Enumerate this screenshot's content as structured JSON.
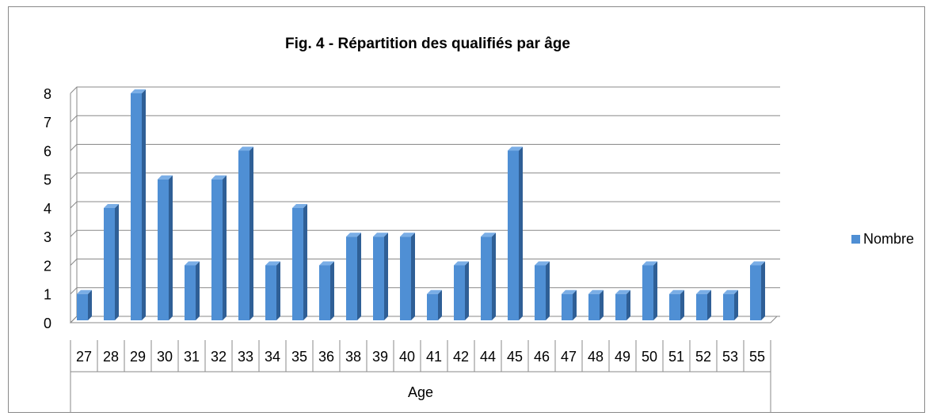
{
  "chart_data": {
    "type": "bar",
    "title": "Fig. 4 - Répartition des qualifiés par âge",
    "x_label": "Age",
    "categories": [
      "27",
      "28",
      "29",
      "30",
      "31",
      "32",
      "33",
      "34",
      "35",
      "36",
      "38",
      "39",
      "40",
      "41",
      "42",
      "44",
      "45",
      "46",
      "47",
      "48",
      "49",
      "50",
      "51",
      "52",
      "53",
      "55"
    ],
    "series": [
      {
        "name": "Nombre",
        "color": "#4f8fd4",
        "values": [
          1,
          4,
          8,
          5,
          2,
          5,
          6,
          2,
          4,
          2,
          3,
          3,
          3,
          1,
          2,
          3,
          6,
          2,
          1,
          1,
          1,
          2,
          1,
          1,
          1,
          2
        ]
      }
    ],
    "ylim": [
      0,
      8
    ],
    "yticks": [
      0,
      1,
      2,
      3,
      4,
      5,
      6,
      7,
      8
    ],
    "grid": true,
    "legend": "right"
  }
}
